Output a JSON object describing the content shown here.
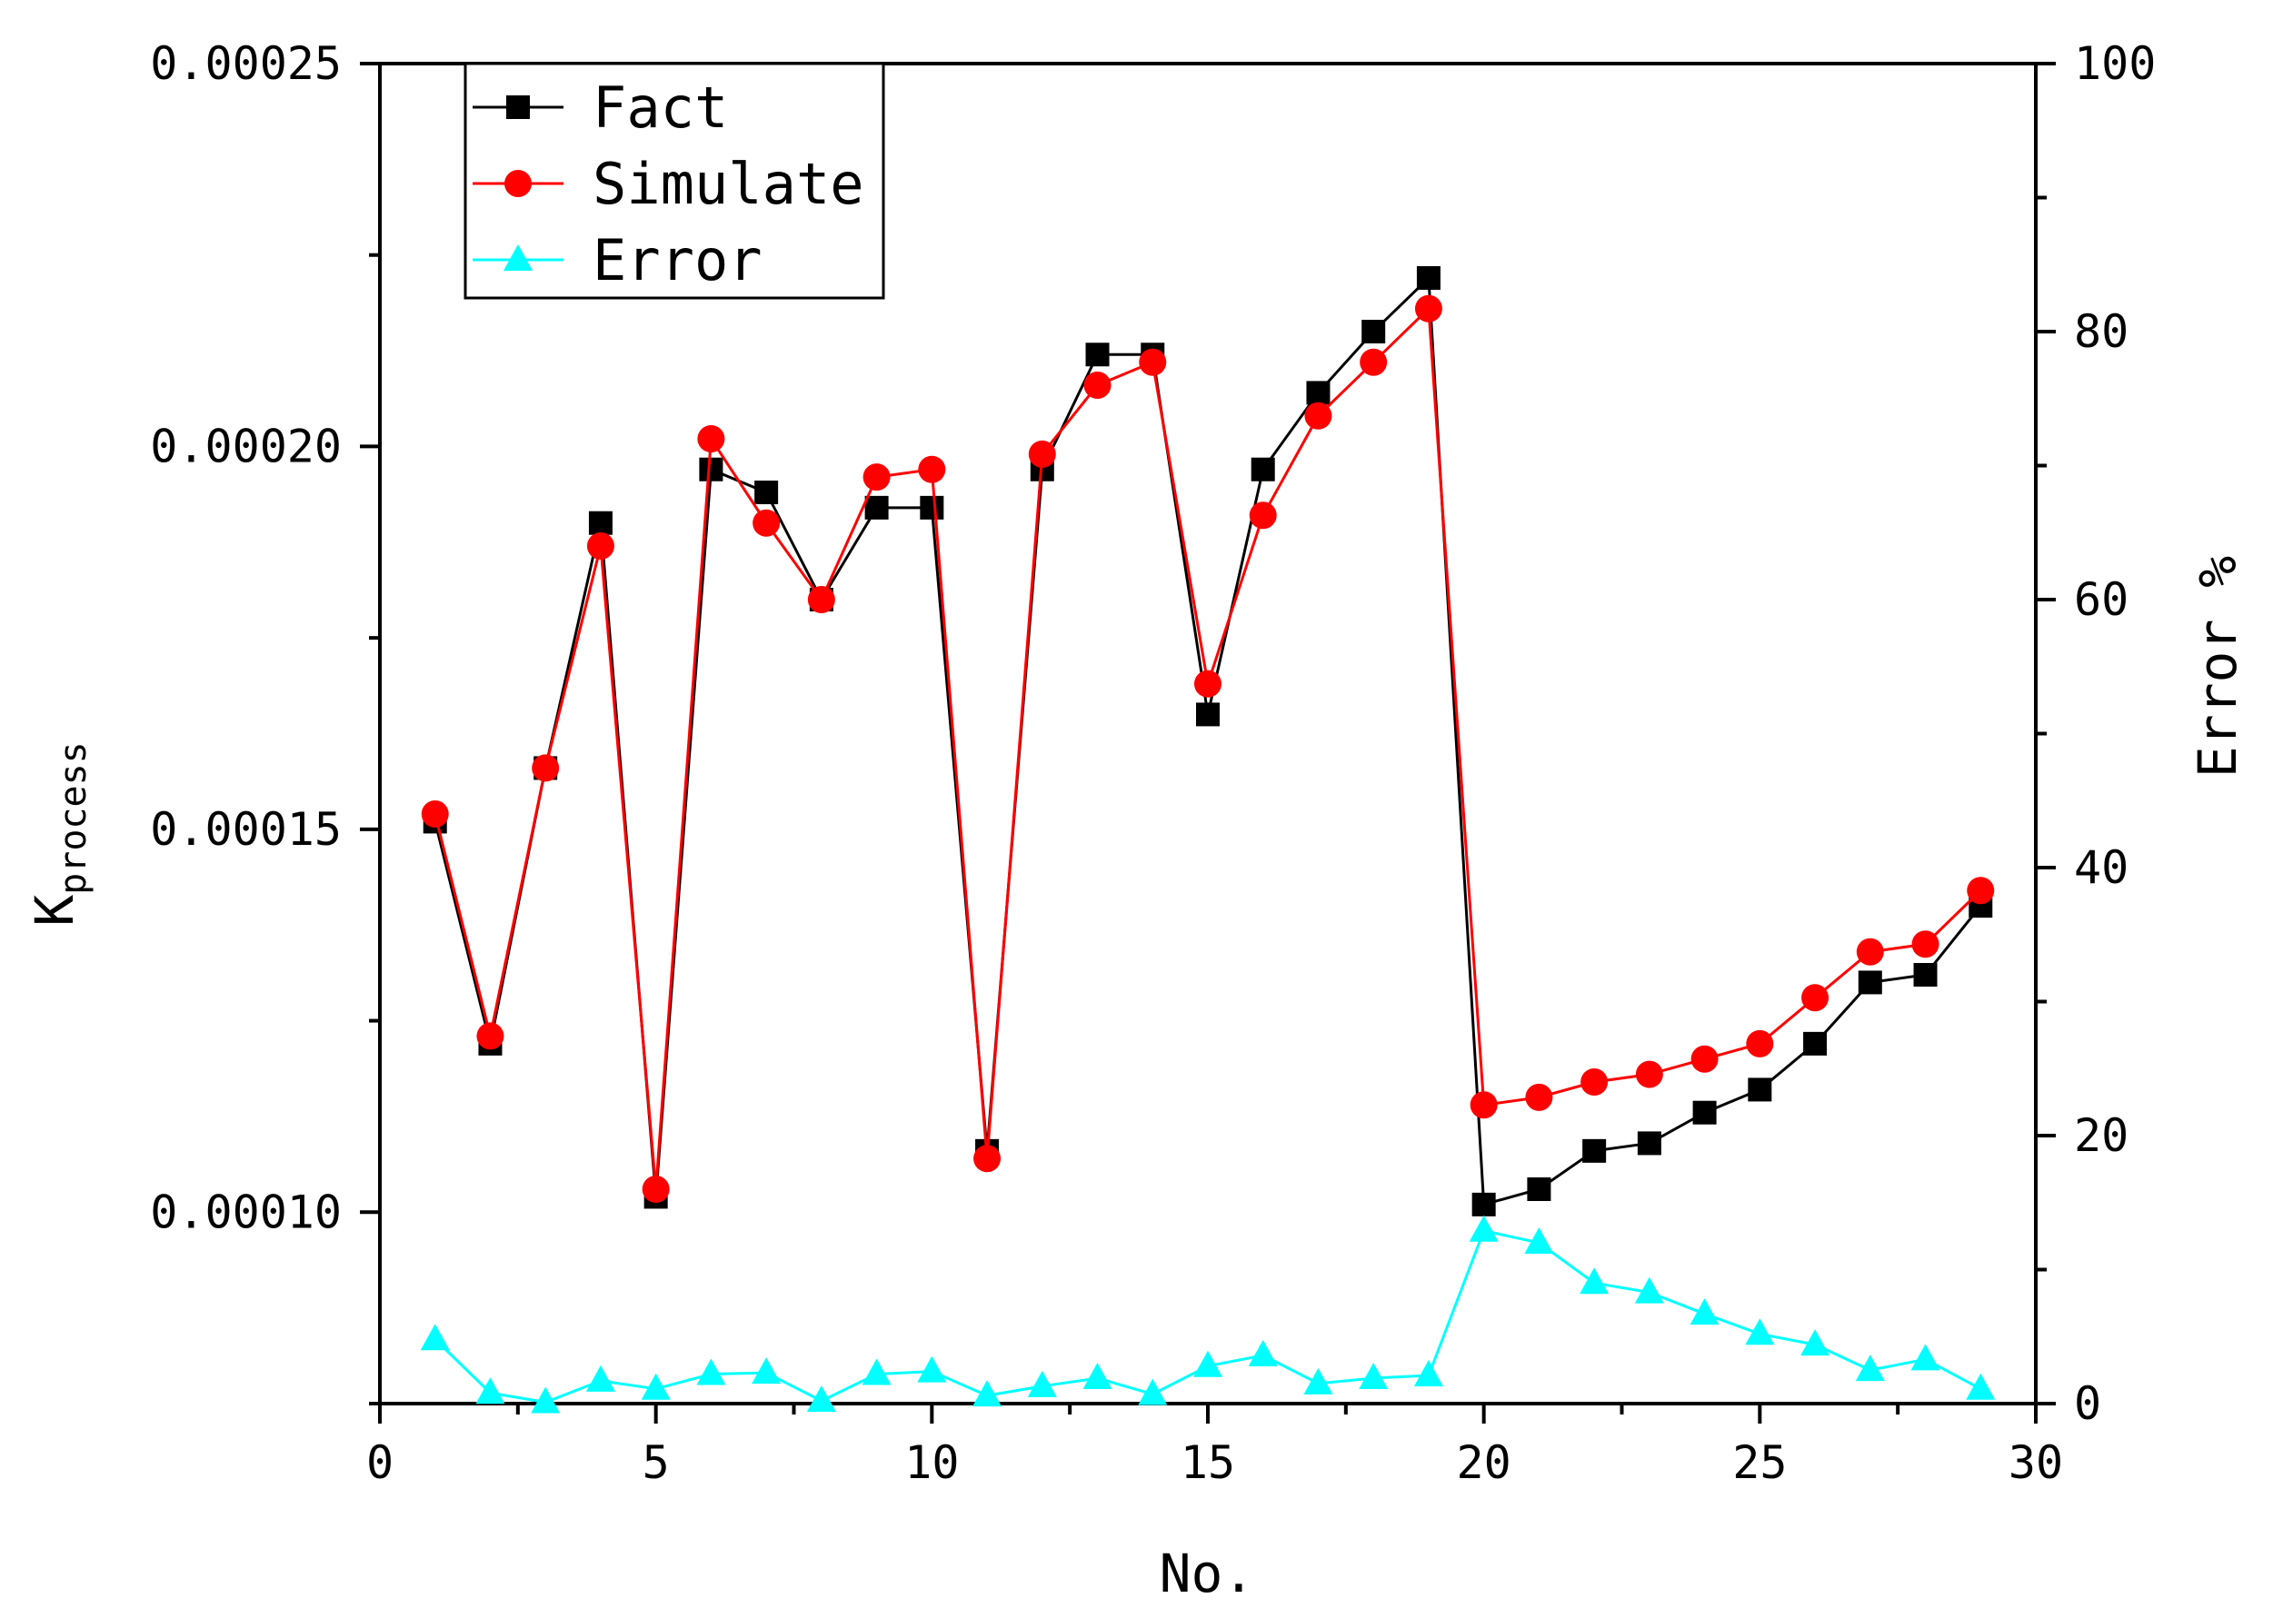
{
  "chart_data": {
    "type": "line",
    "xlabel": "No.",
    "ylabel": "K",
    "ylabel_sub": "process",
    "y2label": "Error %",
    "xlim": [
      0,
      30
    ],
    "ylim": [
      7.5e-05,
      0.00025
    ],
    "y2lim": [
      0,
      100
    ],
    "xticks": [
      0,
      5,
      10,
      15,
      20,
      25,
      30
    ],
    "xtick_labels": [
      "0",
      "5",
      "10",
      "15",
      "20",
      "25",
      "30"
    ],
    "yticks": [
      0.0001,
      0.00015,
      0.0002,
      0.00025
    ],
    "ytick_labels": [
      "0.00010",
      "0.00015",
      "0.00020",
      "0.00025"
    ],
    "y2ticks": [
      0,
      20,
      40,
      60,
      80,
      100
    ],
    "y2tick_labels": [
      "0",
      "20",
      "40",
      "60",
      "80",
      "100"
    ],
    "grid": false,
    "legend_position": "top-left",
    "x": [
      1,
      2,
      3,
      4,
      5,
      6,
      7,
      8,
      9,
      10,
      11,
      12,
      13,
      14,
      15,
      16,
      17,
      18,
      19,
      20,
      21,
      22,
      23,
      24,
      25,
      26,
      27,
      28,
      29
    ],
    "series": [
      {
        "name": "Fact",
        "axis": "left",
        "color": "#000000",
        "marker": "square",
        "values": [
          0.000151,
          0.000122,
          0.000158,
          0.00019,
          0.000102,
          0.000197,
          0.000194,
          0.00018,
          0.000192,
          0.000192,
          0.000108,
          0.000197,
          0.000212,
          0.000212,
          0.000165,
          0.000197,
          0.000207,
          0.000215,
          0.000222,
          0.000101,
          0.000103,
          0.000108,
          0.000109,
          0.000113,
          0.000116,
          0.000122,
          0.00013,
          0.000131,
          0.00014
        ]
      },
      {
        "name": "Simulate",
        "axis": "left",
        "color": "#ff0000",
        "marker": "circle",
        "values": [
          0.000152,
          0.000123,
          0.000158,
          0.000187,
          0.000103,
          0.000201,
          0.00019,
          0.00018,
          0.000196,
          0.000197,
          0.000107,
          0.000199,
          0.000208,
          0.000211,
          0.000169,
          0.000191,
          0.000204,
          0.000211,
          0.000218,
          0.000114,
          0.000115,
          0.000117,
          0.000118,
          0.00012,
          0.000122,
          0.000128,
          0.000134,
          0.000135,
          0.000142
        ]
      },
      {
        "name": "Error",
        "axis": "right",
        "color": "#00ffff",
        "marker": "triangle",
        "values": [
          4.8,
          0.8,
          0.1,
          1.7,
          1.1,
          2.2,
          2.3,
          0.2,
          2.2,
          2.4,
          0.6,
          1.3,
          1.9,
          0.7,
          2.8,
          3.6,
          1.5,
          1.9,
          2.1,
          12.9,
          12.0,
          9.0,
          8.3,
          6.7,
          5.2,
          4.4,
          2.5,
          3.3,
          1.1
        ]
      }
    ]
  }
}
